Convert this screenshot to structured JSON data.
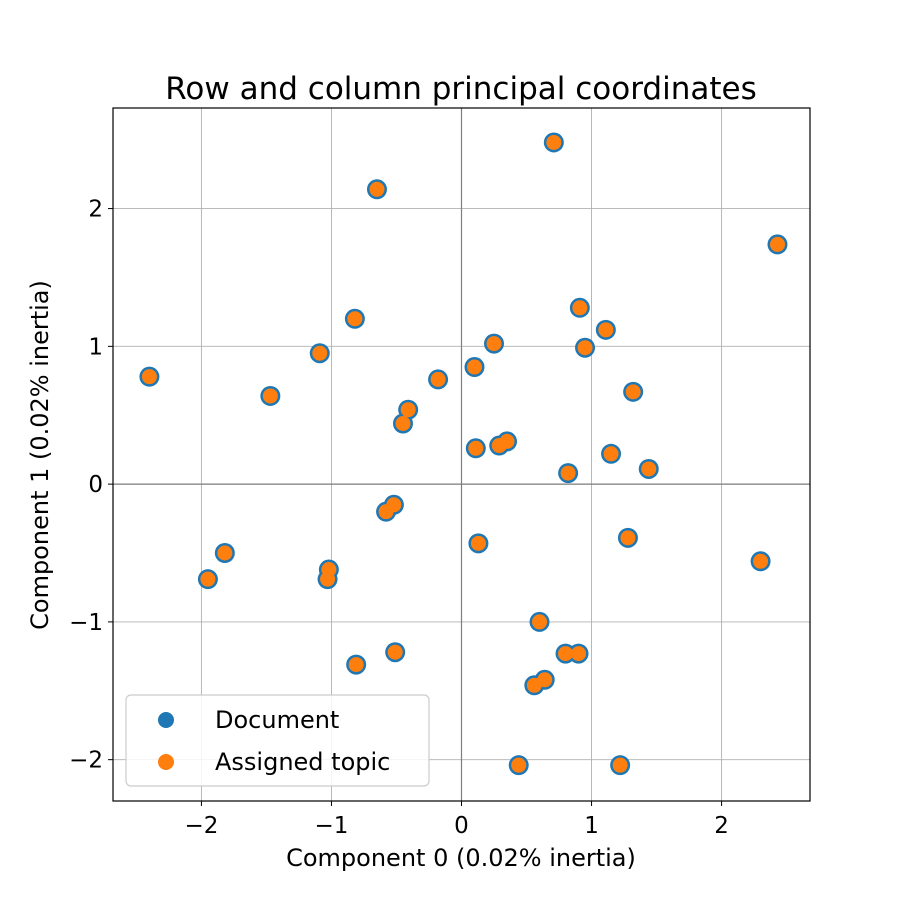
{
  "chart_data": {
    "type": "scatter",
    "title": "Row and column principal coordinates",
    "xlabel": "Component 0 (0.02% inertia)",
    "ylabel": "Component 1 (0.02% inertia)",
    "xlim": [
      -2.68,
      2.68
    ],
    "ylim": [
      -2.3,
      2.73
    ],
    "xticks": [
      -2,
      -1,
      0,
      1,
      2
    ],
    "yticks": [
      -2,
      -1,
      0,
      1,
      2
    ],
    "xtick_labels": [
      "−2",
      "−1",
      "0",
      "1",
      "2"
    ],
    "ytick_labels": [
      "−2",
      "−1",
      "0",
      "1",
      "2"
    ],
    "grid": true,
    "legend_position": "lower-left",
    "series": [
      {
        "name": "Document",
        "color": "#1f77b4",
        "points": [
          [
            0.71,
            2.48
          ],
          [
            -0.65,
            2.14
          ],
          [
            2.43,
            1.74
          ],
          [
            0.91,
            1.28
          ],
          [
            -0.82,
            1.2
          ],
          [
            1.11,
            1.12
          ],
          [
            0.25,
            1.02
          ],
          [
            0.95,
            0.99
          ],
          [
            -1.09,
            0.95
          ],
          [
            0.1,
            0.85
          ],
          [
            -2.4,
            0.78
          ],
          [
            -0.18,
            0.76
          ],
          [
            1.32,
            0.67
          ],
          [
            -1.47,
            0.64
          ],
          [
            -0.41,
            0.54
          ],
          [
            -0.45,
            0.44
          ],
          [
            0.35,
            0.31
          ],
          [
            0.29,
            0.28
          ],
          [
            0.11,
            0.26
          ],
          [
            1.15,
            0.22
          ],
          [
            1.44,
            0.11
          ],
          [
            0.82,
            0.08
          ],
          [
            -0.52,
            -0.15
          ],
          [
            -0.58,
            -0.2
          ],
          [
            0.13,
            -0.43
          ],
          [
            1.28,
            -0.39
          ],
          [
            -1.82,
            -0.5
          ],
          [
            2.3,
            -0.56
          ],
          [
            -1.02,
            -0.62
          ],
          [
            -1.03,
            -0.69
          ],
          [
            -1.95,
            -0.69
          ],
          [
            0.6,
            -1.0
          ],
          [
            0.8,
            -1.23
          ],
          [
            0.9,
            -1.23
          ],
          [
            -0.51,
            -1.22
          ],
          [
            -0.81,
            -1.31
          ],
          [
            0.64,
            -1.42
          ],
          [
            0.56,
            -1.46
          ],
          [
            0.44,
            -2.04
          ],
          [
            1.22,
            -2.04
          ]
        ]
      },
      {
        "name": "Assigned topic",
        "color": "#ff7f0e",
        "points": [
          [
            0.71,
            2.48
          ],
          [
            -0.65,
            2.14
          ],
          [
            2.43,
            1.74
          ],
          [
            0.91,
            1.28
          ],
          [
            -0.82,
            1.2
          ],
          [
            1.11,
            1.12
          ],
          [
            0.25,
            1.02
          ],
          [
            0.95,
            0.99
          ],
          [
            -1.09,
            0.95
          ],
          [
            0.1,
            0.85
          ],
          [
            -2.4,
            0.78
          ],
          [
            -0.18,
            0.76
          ],
          [
            1.32,
            0.67
          ],
          [
            -1.47,
            0.64
          ],
          [
            -0.41,
            0.54
          ],
          [
            -0.45,
            0.44
          ],
          [
            0.35,
            0.31
          ],
          [
            0.29,
            0.28
          ],
          [
            0.11,
            0.26
          ],
          [
            1.15,
            0.22
          ],
          [
            1.44,
            0.11
          ],
          [
            0.82,
            0.08
          ],
          [
            -0.52,
            -0.15
          ],
          [
            -0.58,
            -0.2
          ],
          [
            0.13,
            -0.43
          ],
          [
            1.28,
            -0.39
          ],
          [
            -1.82,
            -0.5
          ],
          [
            2.3,
            -0.56
          ],
          [
            -1.02,
            -0.62
          ],
          [
            -1.03,
            -0.69
          ],
          [
            -1.95,
            -0.69
          ],
          [
            0.6,
            -1.0
          ],
          [
            0.8,
            -1.23
          ],
          [
            0.9,
            -1.23
          ],
          [
            -0.51,
            -1.22
          ],
          [
            -0.81,
            -1.31
          ],
          [
            0.64,
            -1.42
          ],
          [
            0.56,
            -1.46
          ],
          [
            0.44,
            -2.04
          ],
          [
            1.22,
            -2.04
          ]
        ]
      }
    ]
  }
}
